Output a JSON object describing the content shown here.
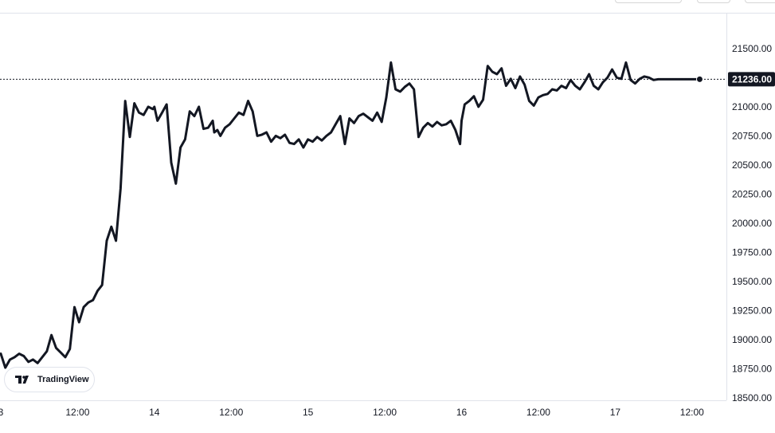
{
  "brand": {
    "name": "TradingView"
  },
  "colors": {
    "line": "#131722",
    "grid": "#e0e3eb",
    "axis_text": "#131722",
    "price_tag_bg": "#131722"
  },
  "chart_data": {
    "type": "line",
    "title": "",
    "xlabel": "",
    "ylabel": "",
    "x_ticks": [
      "3",
      "12:00",
      "14",
      "12:00",
      "15",
      "12:00",
      "16",
      "12:00",
      "17",
      "12:00"
    ],
    "y_ticks": [
      "18500.00",
      "18750.00",
      "19000.00",
      "19250.00",
      "19500.00",
      "19750.00",
      "20000.00",
      "20250.00",
      "20500.00",
      "20750.00",
      "21000.00",
      "21250.00",
      "21500.00"
    ],
    "xlim": [
      -0.005,
      4.724
    ],
    "ylim": [
      18480,
      21800
    ],
    "last_price": 21236,
    "last_price_label": "21236.00",
    "grid": false,
    "series": [
      {
        "x": [
          0.0,
          0.03,
          0.06,
          0.09,
          0.12,
          0.15,
          0.18,
          0.21,
          0.24,
          0.27,
          0.3,
          0.33,
          0.36,
          0.39,
          0.42,
          0.45,
          0.48,
          0.51,
          0.54,
          0.57,
          0.6,
          0.63,
          0.66,
          0.69,
          0.72,
          0.75,
          0.78,
          0.81,
          0.84,
          0.87,
          0.9,
          0.93,
          0.96,
          0.99,
          1.0,
          1.02,
          1.05,
          1.08,
          1.11,
          1.14,
          1.17,
          1.2,
          1.23,
          1.26,
          1.29,
          1.32,
          1.35,
          1.38,
          1.39,
          1.41,
          1.43,
          1.46,
          1.49,
          1.52,
          1.55,
          1.58,
          1.61,
          1.64,
          1.67,
          1.7,
          1.73,
          1.76,
          1.79,
          1.82,
          1.85,
          1.88,
          1.91,
          1.94,
          1.97,
          2.0,
          2.03,
          2.06,
          2.09,
          2.12,
          2.15,
          2.18,
          2.21,
          2.24,
          2.27,
          2.3,
          2.33,
          2.36,
          2.39,
          2.42,
          2.45,
          2.48,
          2.51,
          2.54,
          2.57,
          2.6,
          2.63,
          2.66,
          2.69,
          2.72,
          2.75,
          2.78,
          2.81,
          2.84,
          2.87,
          2.9,
          2.93,
          2.96,
          2.99,
          3.0,
          3.02,
          3.05,
          3.08,
          3.11,
          3.14,
          3.17,
          3.2,
          3.23,
          3.26,
          3.29,
          3.32,
          3.35,
          3.38,
          3.41,
          3.44,
          3.47,
          3.5,
          3.53,
          3.56,
          3.59,
          3.62,
          3.65,
          3.68,
          3.71,
          3.74,
          3.77,
          3.8,
          3.83,
          3.86,
          3.89,
          3.92,
          3.95,
          3.98,
          4.01,
          4.04,
          4.07,
          4.1,
          4.13,
          4.16,
          4.19,
          4.22,
          4.25,
          4.28,
          4.31,
          4.34,
          4.37,
          4.4,
          4.43,
          4.46,
          4.49,
          4.52,
          4.55
        ],
        "y": [
          18880,
          18760,
          18830,
          18850,
          18880,
          18860,
          18810,
          18830,
          18800,
          18850,
          18900,
          19040,
          18930,
          18890,
          18850,
          18920,
          19280,
          19150,
          19280,
          19320,
          19340,
          19420,
          19470,
          19850,
          19970,
          19850,
          20300,
          21050,
          20740,
          21030,
          20950,
          20930,
          21000,
          20980,
          21000,
          20880,
          20950,
          21020,
          20520,
          20340,
          20650,
          20720,
          20960,
          20920,
          21000,
          20810,
          20820,
          20880,
          20780,
          20800,
          20750,
          20820,
          20850,
          20900,
          20950,
          20930,
          21050,
          20960,
          20750,
          20760,
          20780,
          20700,
          20750,
          20730,
          20760,
          20690,
          20680,
          20720,
          20650,
          20720,
          20700,
          20740,
          20710,
          20750,
          20780,
          20850,
          20920,
          20680,
          20900,
          20860,
          20920,
          20940,
          20910,
          20880,
          20950,
          20870,
          21080,
          21380,
          21150,
          21130,
          21170,
          21200,
          21150,
          20740,
          20820,
          20860,
          20830,
          20870,
          20840,
          20850,
          20880,
          20800,
          20680,
          20880,
          21020,
          21050,
          21090,
          21000,
          21060,
          21350,
          21300,
          21280,
          21330,
          21180,
          21240,
          21160,
          21260,
          21190,
          21050,
          21010,
          21080,
          21100,
          21110,
          21150,
          21140,
          21180,
          21160,
          21230,
          21180,
          21150,
          21210,
          21280,
          21180,
          21150,
          21210,
          21250,
          21320,
          21250,
          21240,
          21380,
          21230,
          21200,
          21240,
          21260,
          21250,
          21230,
          21236,
          21236,
          21236,
          21236,
          21236,
          21236,
          21236,
          21236,
          21236,
          21236
        ]
      }
    ]
  }
}
